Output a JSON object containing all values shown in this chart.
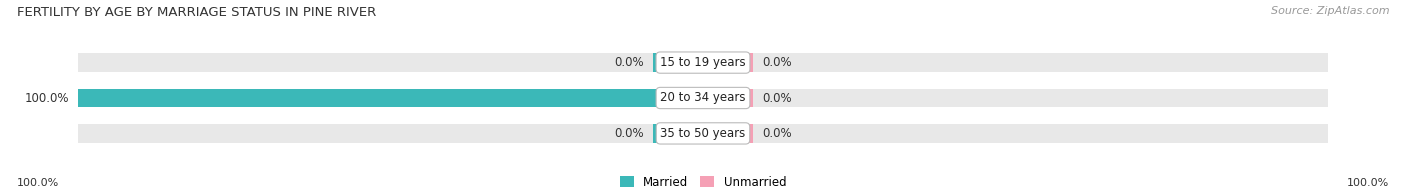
{
  "title": "FERTILITY BY AGE BY MARRIAGE STATUS IN PINE RIVER",
  "source": "Source: ZipAtlas.com",
  "categories": [
    "15 to 19 years",
    "20 to 34 years",
    "35 to 50 years"
  ],
  "married_values": [
    0.0,
    100.0,
    0.0
  ],
  "unmarried_values": [
    0.0,
    0.0,
    0.0
  ],
  "married_color": "#3bb8b8",
  "unmarried_color": "#f5a0b5",
  "bar_bg_color": "#e8e8e8",
  "center_label_bg": "#ffffff",
  "center_label_border": "#cccccc",
  "legend_married": "Married",
  "legend_unmarried": "Unmarried",
  "left_footer_label": "100.0%",
  "right_footer_label": "100.0%",
  "title_fontsize": 9.5,
  "label_fontsize": 8.5,
  "footer_fontsize": 8,
  "source_fontsize": 8
}
